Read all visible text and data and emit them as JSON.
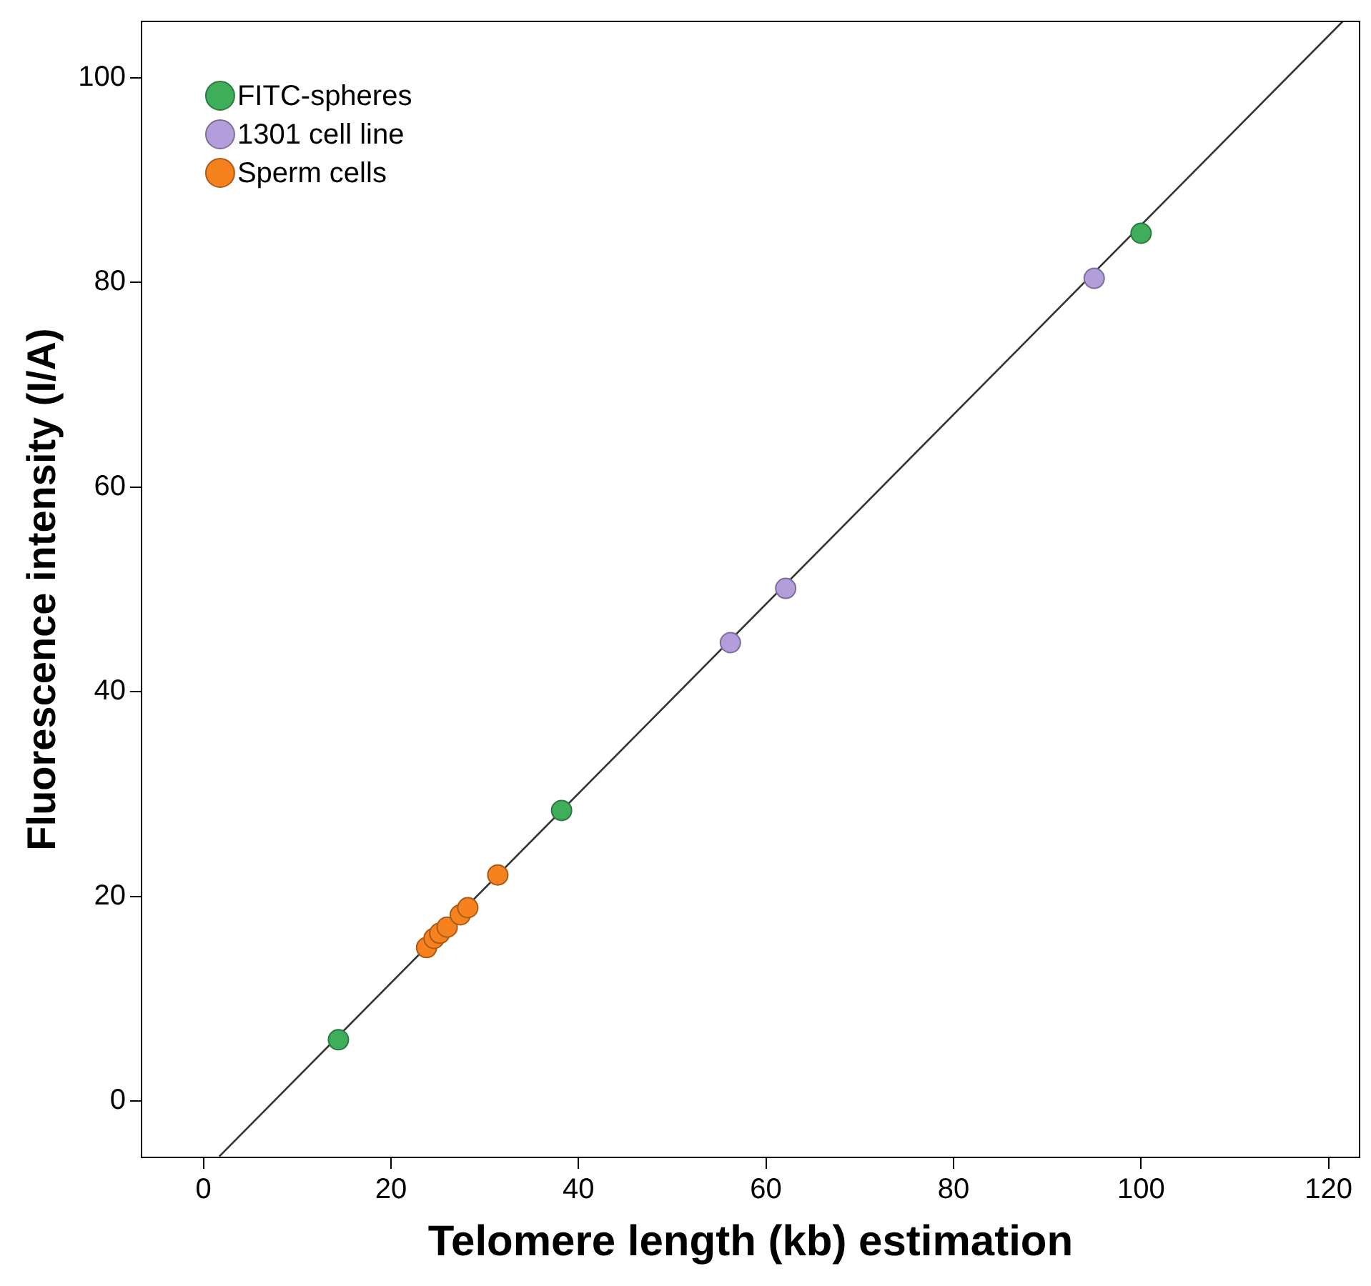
{
  "chart_data": {
    "type": "scatter",
    "xlabel": "Telomere length (kb) estimation",
    "ylabel": "Fluorescence intensity (I/A)",
    "xlim": [
      -6.6,
      123.3
    ],
    "xticks": [
      0,
      20,
      40,
      60,
      80,
      100,
      120
    ],
    "ylim": [
      -5.5,
      105.5
    ],
    "yticks": [
      0,
      20,
      40,
      60,
      80,
      100
    ],
    "grid": false,
    "legend": "top left",
    "marker": "circle",
    "series": [
      {
        "name": "FITC-spheres",
        "color": "#3fae5a",
        "x": [
          14.4,
          38.2,
          100
        ],
        "values": [
          6.0,
          28.4,
          84.8
        ]
      },
      {
        "name": "1301 cell line",
        "color": "#b39ddb",
        "x": [
          56.2,
          62.1,
          95.0
        ],
        "values": [
          44.8,
          50.1,
          80.4
        ]
      },
      {
        "name": "Sperm cells",
        "color": "#f5821f",
        "x": [
          23.8,
          24.6,
          25.2,
          26.0,
          27.4,
          28.2,
          31.4
        ],
        "values": [
          15.0,
          15.9,
          16.4,
          17.0,
          18.2,
          18.9,
          22.1
        ]
      },
      {
        "type": "line",
        "color": "#333333",
        "marker": "none",
        "x": [
          1.7,
          121.5
        ],
        "values": [
          -5.4,
          105.5
        ]
      }
    ]
  }
}
